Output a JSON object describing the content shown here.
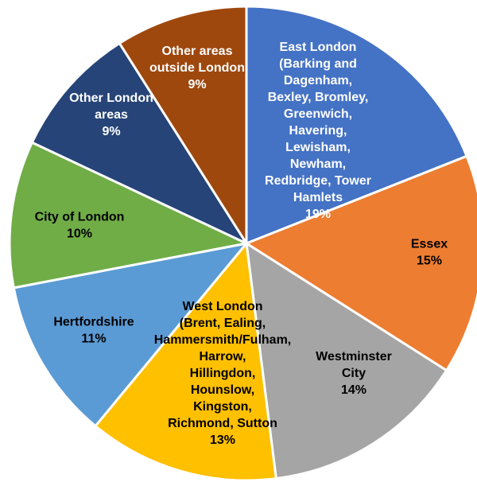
{
  "chart_data": {
    "type": "pie",
    "categories": [
      "East London (Barking and Dagenham, Bexley, Bromley, Greenwich, Havering, Lewisham, Newham, Redbridge, Tower Hamlets",
      "Essex",
      "Westminster City",
      "West London (Brent, Ealing, Hammersmith/Fulham, Harrow, Hillingdon, Hounslow, Kingston, Richmond, Sutton",
      "Hertfordshire",
      "City of London",
      "Other London areas",
      "Other areas outside London"
    ],
    "values": [
      19,
      15,
      14,
      13,
      11,
      10,
      9,
      9
    ],
    "value_labels": [
      "19%",
      "15%",
      "14%",
      "13%",
      "11%",
      "10%",
      "9%",
      "9%"
    ],
    "colors": [
      "#4472c4",
      "#ed7d31",
      "#a5a5a5",
      "#ffc000",
      "#5b9bd5",
      "#70ad47",
      "#264478",
      "#9e480e"
    ]
  }
}
